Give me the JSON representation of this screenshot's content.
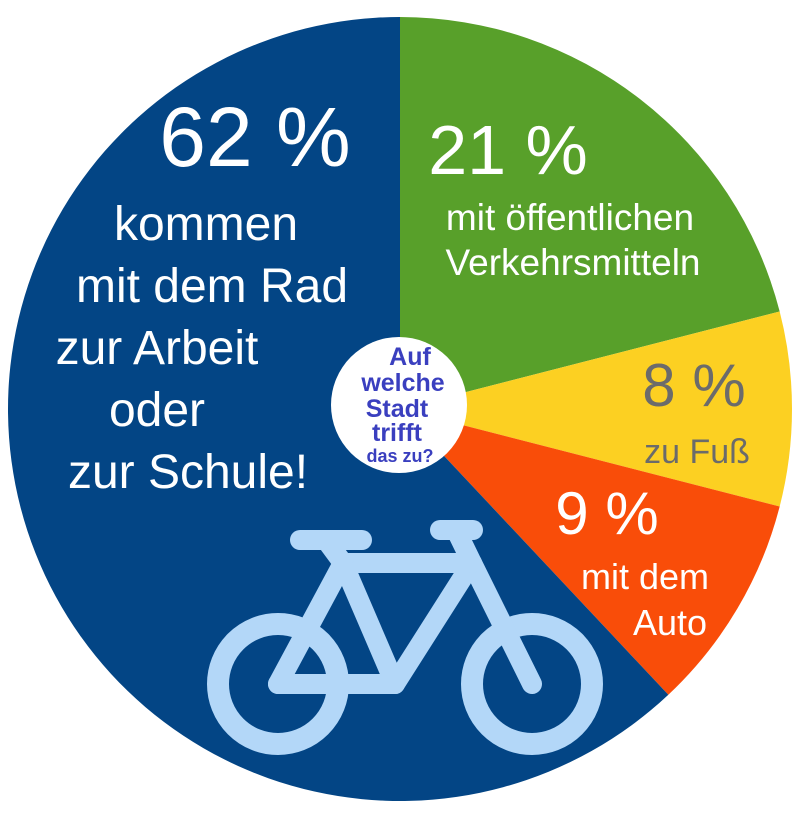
{
  "chart_data": {
    "type": "pie",
    "slices": [
      {
        "key": "rad",
        "value": 62,
        "value_label": "62 %",
        "label_lines": [
          "kommen",
          "mit dem Rad",
          "zur Arbeit",
          "oder",
          "zur Schule!"
        ],
        "color": "#034585",
        "text_color": "#ffffff"
      },
      {
        "key": "oepnv",
        "value": 21,
        "value_label": "21 %",
        "label_lines": [
          "mit öffentlichen",
          "Verkehrsmitteln"
        ],
        "color": "#58a02a",
        "text_color": "#ffffff"
      },
      {
        "key": "fuss",
        "value": 8,
        "value_label": "8 %",
        "label_lines": [
          "zu Fuß"
        ],
        "color": "#fcd022",
        "text_color": "#6b6b6b"
      },
      {
        "key": "auto",
        "value": 9,
        "value_label": "9 %",
        "label_lines": [
          "mit dem",
          "Auto"
        ],
        "color": "#f94d09",
        "text_color": "#ffffff"
      }
    ]
  },
  "badge": {
    "lines": [
      "Auf",
      "welche",
      "Stadt",
      "trifft",
      "das zu?"
    ],
    "text_color": "#3a3fbf",
    "background": "#ffffff"
  },
  "icons": {
    "bicycle": {
      "name": "bicycle-icon",
      "color": "#b3d7f8"
    }
  }
}
